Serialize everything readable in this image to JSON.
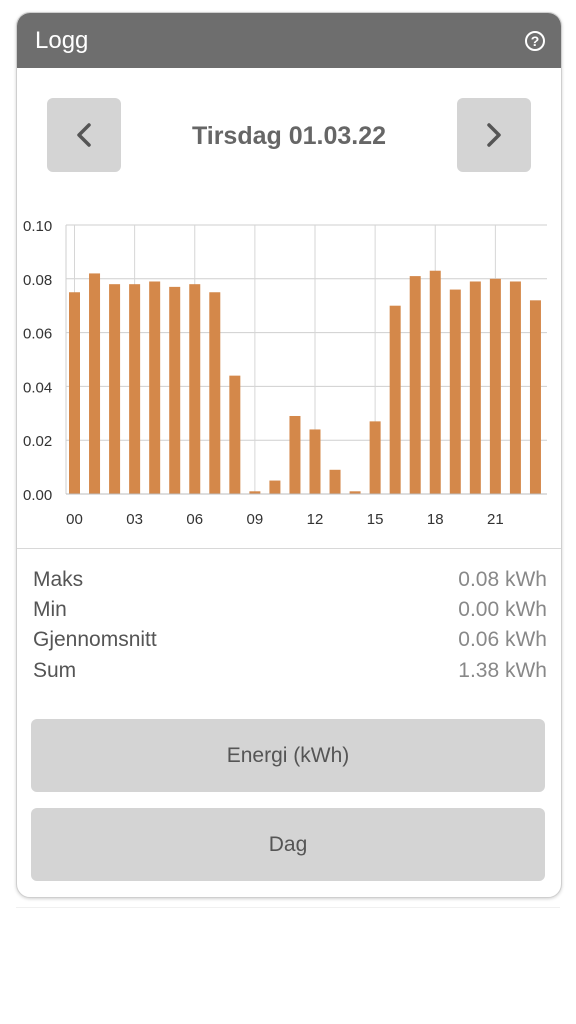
{
  "header": {
    "title": "Logg",
    "help_icon": "help-icon"
  },
  "nav": {
    "prev_icon": "chevron-left-icon",
    "next_icon": "chevron-right-icon",
    "date_label": "Tirsdag 01.03.22"
  },
  "chart_data": {
    "type": "bar",
    "categories": [
      "00",
      "01",
      "02",
      "03",
      "04",
      "05",
      "06",
      "07",
      "08",
      "09",
      "10",
      "11",
      "12",
      "13",
      "14",
      "15",
      "16",
      "17",
      "18",
      "19",
      "20",
      "21",
      "22",
      "23"
    ],
    "x_tick_labels": [
      "00",
      "03",
      "06",
      "09",
      "12",
      "15",
      "18",
      "21"
    ],
    "y_tick_labels": [
      "0.10",
      "0.08",
      "0.06",
      "0.04",
      "0.02",
      "0.00"
    ],
    "values": [
      0.075,
      0.082,
      0.078,
      0.078,
      0.079,
      0.077,
      0.078,
      0.075,
      0.044,
      0.001,
      0.005,
      0.029,
      0.024,
      0.009,
      0.001,
      0.027,
      0.07,
      0.081,
      0.083,
      0.076,
      0.079,
      0.08,
      0.079,
      0.072
    ],
    "ylim": [
      0,
      0.1
    ],
    "grid": true,
    "bar_color": "#d4884a"
  },
  "stats": [
    {
      "label": "Maks",
      "value": "0.08 kWh"
    },
    {
      "label": "Min",
      "value": "0.00 kWh"
    },
    {
      "label": "Gjennomsnitt",
      "value": "0.06 kWh"
    },
    {
      "label": "Sum",
      "value": "1.38 kWh"
    }
  ],
  "buttons": {
    "unit": "Energi (kWh)",
    "period": "Dag"
  }
}
